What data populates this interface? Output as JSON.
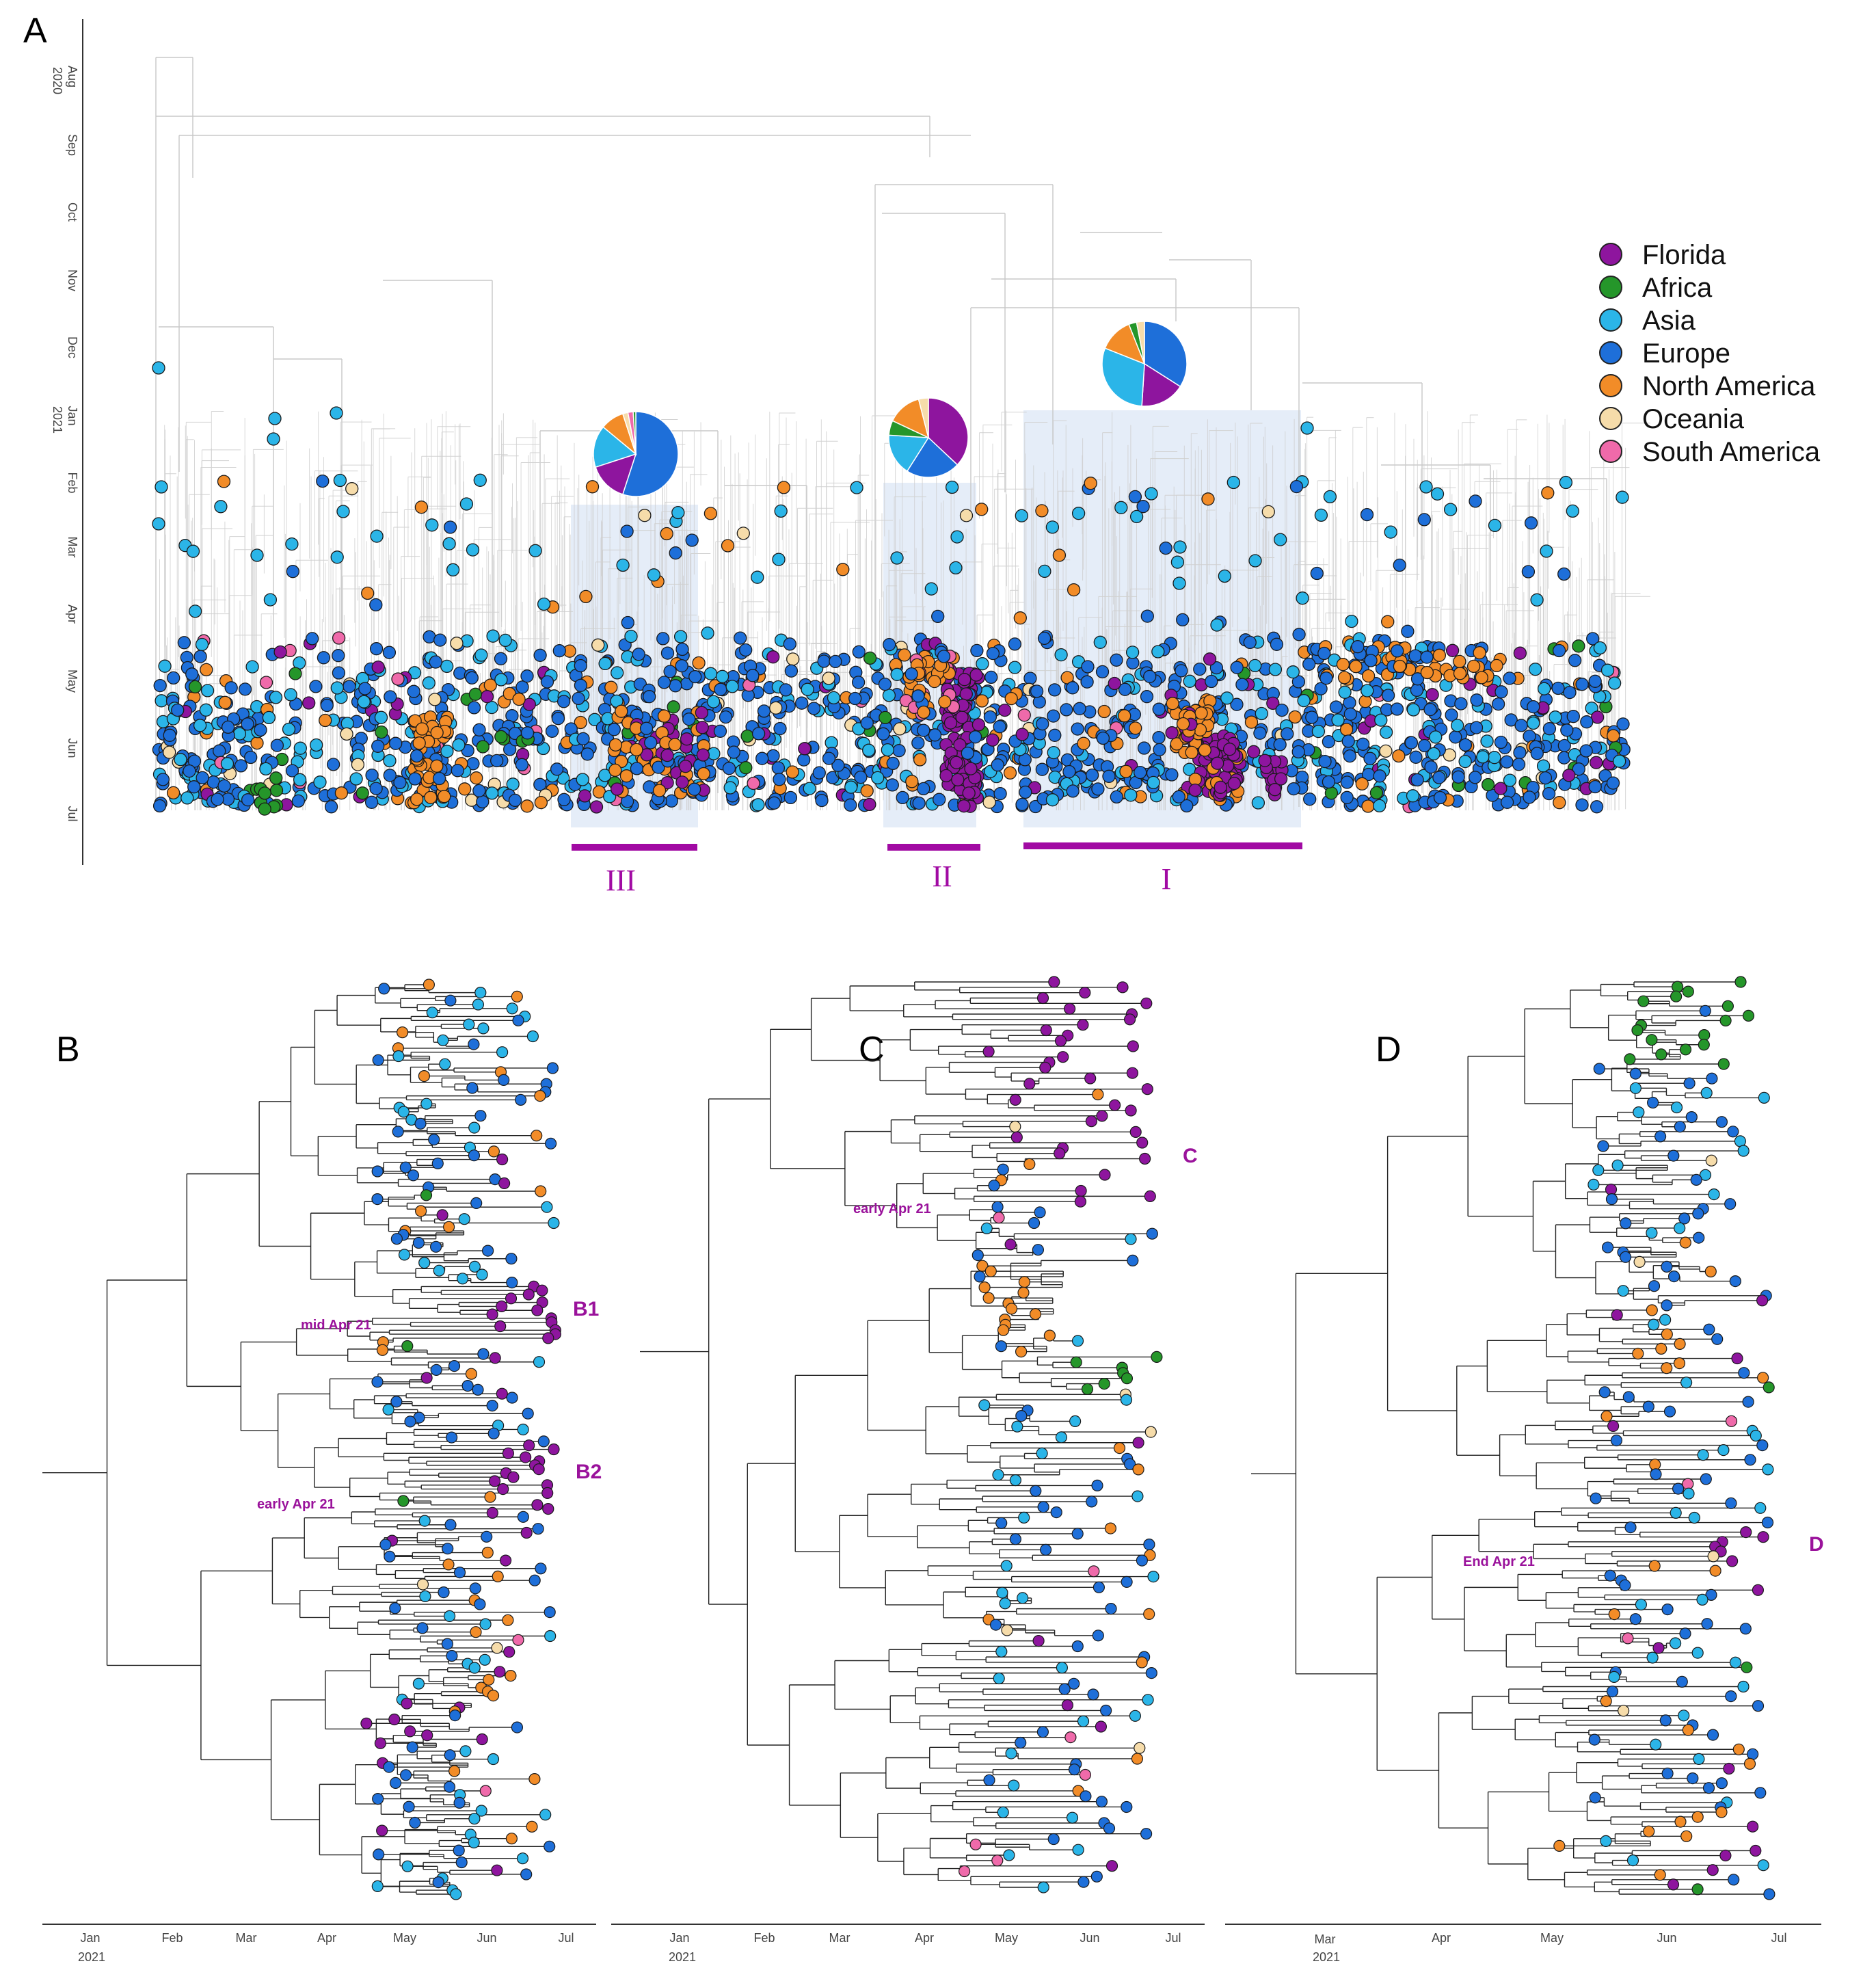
{
  "panels": {
    "a": "A",
    "b": "B",
    "c": "C",
    "d": "D"
  },
  "colors": {
    "Florida": "#8e159e",
    "Africa": "#25962a",
    "Asia": "#2bb5e8",
    "Europe": "#1e6fd9",
    "North America": "#f28c28",
    "Oceania": "#f6dcaa",
    "South America": "#ef6aaa",
    "clade": "#a10aa3",
    "highlight": "#dce7f5"
  },
  "legend": {
    "items": [
      {
        "label": "Florida"
      },
      {
        "label": "Africa"
      },
      {
        "label": "Asia"
      },
      {
        "label": "Europe"
      },
      {
        "label": "North America"
      },
      {
        "label": "Oceania"
      },
      {
        "label": "South America"
      }
    ]
  },
  "panel_a": {
    "y_ticks": [
      "Aug",
      "Sep",
      "Oct",
      "Nov",
      "Dec",
      "Jan",
      "Feb",
      "Mar",
      "Apr",
      "May",
      "Jun",
      "Jul"
    ],
    "year_2020": "2020",
    "year_2021": "2021",
    "clades": [
      {
        "label": "III",
        "pie": [
          {
            "region": "Europe",
            "value": 55
          },
          {
            "region": "Florida",
            "value": 15
          },
          {
            "region": "Asia",
            "value": 16
          },
          {
            "region": "North America",
            "value": 9
          },
          {
            "region": "Oceania",
            "value": 2
          },
          {
            "region": "South America",
            "value": 2
          },
          {
            "region": "Africa",
            "value": 1
          }
        ]
      },
      {
        "label": "II",
        "pie": [
          {
            "region": "Florida",
            "value": 37
          },
          {
            "region": "Europe",
            "value": 22
          },
          {
            "region": "Asia",
            "value": 17
          },
          {
            "region": "Africa",
            "value": 6
          },
          {
            "region": "North America",
            "value": 14
          },
          {
            "region": "Oceania",
            "value": 4
          }
        ]
      },
      {
        "label": "I",
        "pie": [
          {
            "region": "Europe",
            "value": 34
          },
          {
            "region": "Florida",
            "value": 17
          },
          {
            "region": "Asia",
            "value": 30
          },
          {
            "region": "North America",
            "value": 13
          },
          {
            "region": "Africa",
            "value": 3
          },
          {
            "region": "Oceania",
            "value": 3
          }
        ]
      }
    ]
  },
  "panel_b": {
    "x_ticks": [
      "Jan",
      "Feb",
      "Mar",
      "Apr",
      "May",
      "Jun",
      "Jul"
    ],
    "year": "2021",
    "annotations": [
      "mid Apr 21",
      "early Apr 21"
    ],
    "clade_labels": [
      "B1",
      "B2"
    ]
  },
  "panel_c": {
    "x_ticks": [
      "Jan",
      "Feb",
      "Mar",
      "Apr",
      "May",
      "Jun",
      "Jul"
    ],
    "year": "2021",
    "annotations": [
      "early Apr 21"
    ],
    "clade_labels": [
      "C"
    ]
  },
  "panel_d": {
    "x_ticks": [
      "Mar",
      "Apr",
      "May",
      "Jun",
      "Jul"
    ],
    "year": "2021",
    "annotations": [
      "End Apr 21"
    ],
    "clade_labels": [
      "D"
    ]
  }
}
